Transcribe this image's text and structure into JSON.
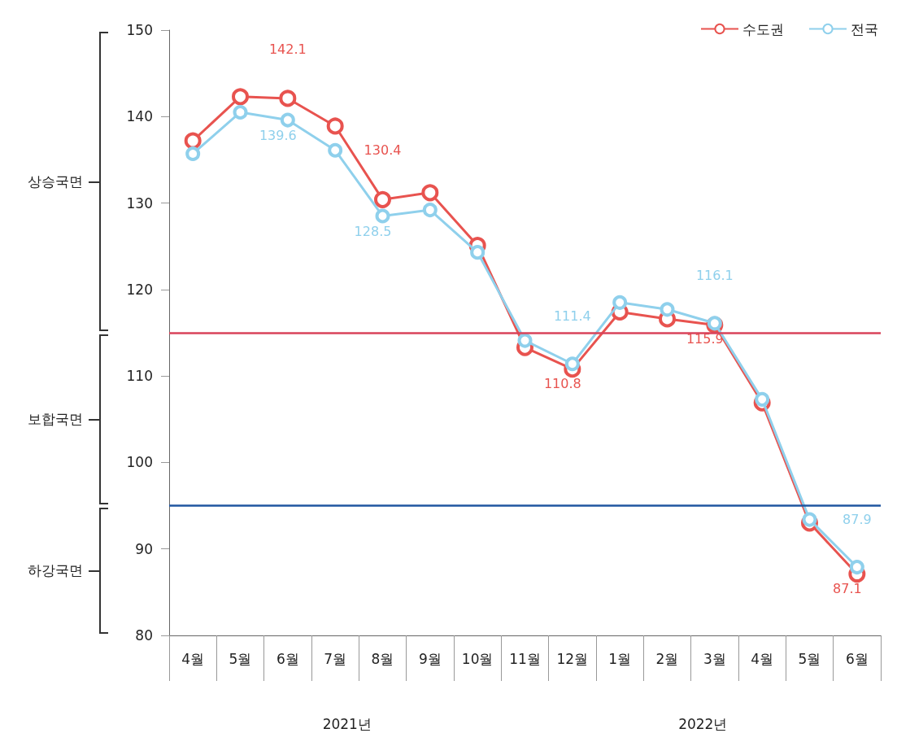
{
  "chart_data": {
    "type": "line",
    "categories": [
      "4월",
      "5월",
      "6월",
      "7월",
      "8월",
      "9월",
      "10월",
      "11월",
      "12월",
      "1월",
      "2월",
      "3월",
      "4월",
      "5월",
      "6월"
    ],
    "series": [
      {
        "name": "수도권",
        "color": "#e8534f",
        "values": [
          137.2,
          142.3,
          142.1,
          138.9,
          130.4,
          131.2,
          125.1,
          113.3,
          110.8,
          117.4,
          116.6,
          115.9,
          106.9,
          93.0,
          87.1
        ],
        "value_labels": [
          null,
          null,
          "142.1",
          null,
          "130.4",
          null,
          null,
          null,
          "110.8",
          null,
          null,
          "115.9",
          null,
          null,
          "87.1"
        ]
      },
      {
        "name": "전국",
        "color": "#8fd0ec",
        "values": [
          135.7,
          140.5,
          139.6,
          136.1,
          128.5,
          129.2,
          124.3,
          114.1,
          111.4,
          118.5,
          117.7,
          116.1,
          107.3,
          93.4,
          87.9
        ],
        "value_labels": [
          null,
          null,
          "139.6",
          null,
          "128.5",
          null,
          null,
          null,
          "111.4",
          null,
          null,
          "116.1",
          null,
          null,
          "87.9"
        ]
      }
    ],
    "ylim": [
      80,
      150
    ],
    "yticks": [
      80,
      90,
      100,
      110,
      120,
      130,
      140,
      150
    ],
    "ref_lines": [
      {
        "axis": "y",
        "value": 115,
        "color": "#d9435a"
      },
      {
        "axis": "y",
        "value": 95,
        "color": "#1f56a0"
      }
    ],
    "annotations": [
      "상승국면",
      "보합국면",
      "하강국면",
      "2021년",
      "2022년"
    ],
    "grid": false,
    "legend": "top right",
    "marker": "circle",
    "line_style": "solid"
  }
}
